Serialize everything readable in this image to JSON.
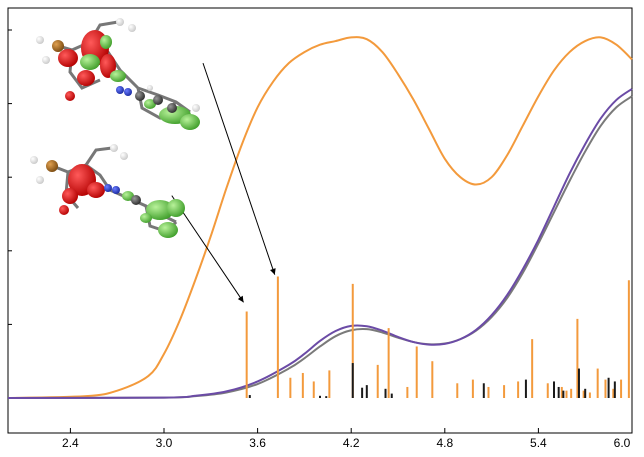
{
  "chart_data": {
    "type": "line",
    "title": "",
    "xlabel": "",
    "ylabel": "",
    "xlim": [
      2.0,
      6.0
    ],
    "ylim": [
      0,
      1
    ],
    "x_ticks": [
      {
        "value": 2.4,
        "label": "2.4"
      },
      {
        "value": 3.0,
        "label": "3.0"
      },
      {
        "value": 3.6,
        "label": "3.6"
      },
      {
        "value": 4.2,
        "label": "4.2"
      },
      {
        "value": 4.8,
        "label": "4.8"
      },
      {
        "value": 5.4,
        "label": "5.4"
      },
      {
        "value": 6.0,
        "label": "6.0"
      }
    ],
    "y_ticks": [
      0.0,
      0.2,
      0.4,
      0.6,
      0.8,
      1.0
    ],
    "grid": false,
    "legend": "none",
    "series": [
      {
        "color": "#f39a3c",
        "x": [
          2.0,
          2.5,
          2.7,
          2.9,
          3.0,
          3.1,
          3.2,
          3.3,
          3.4,
          3.5,
          3.6,
          3.7,
          3.8,
          3.9,
          4.0,
          4.1,
          4.2,
          4.3,
          4.4,
          4.5,
          4.6,
          4.7,
          4.8,
          4.9,
          5.0,
          5.1,
          5.2,
          5.3,
          5.4,
          5.5,
          5.6,
          5.7,
          5.8,
          5.9,
          6.0
        ],
        "values": [
          0.0,
          0.005,
          0.02,
          0.06,
          0.12,
          0.21,
          0.32,
          0.44,
          0.57,
          0.69,
          0.79,
          0.86,
          0.91,
          0.94,
          0.96,
          0.97,
          0.98,
          0.975,
          0.94,
          0.88,
          0.81,
          0.73,
          0.65,
          0.6,
          0.58,
          0.6,
          0.66,
          0.74,
          0.82,
          0.89,
          0.94,
          0.97,
          0.98,
          0.96,
          0.92
        ]
      },
      {
        "color": "#6b4ba6",
        "x": [
          2.0,
          3.0,
          3.2,
          3.4,
          3.6,
          3.8,
          3.9,
          4.0,
          4.1,
          4.2,
          4.3,
          4.4,
          4.5,
          4.6,
          4.7,
          4.8,
          4.9,
          5.0,
          5.1,
          5.2,
          5.3,
          5.4,
          5.5,
          5.6,
          5.7,
          5.8,
          5.9,
          6.0
        ],
        "values": [
          0.0,
          0.001,
          0.006,
          0.018,
          0.045,
          0.09,
          0.12,
          0.155,
          0.182,
          0.196,
          0.195,
          0.183,
          0.166,
          0.152,
          0.145,
          0.147,
          0.16,
          0.185,
          0.225,
          0.28,
          0.35,
          0.43,
          0.52,
          0.61,
          0.69,
          0.76,
          0.81,
          0.84
        ]
      },
      {
        "color": "#7a7a7a",
        "x": [
          2.0,
          3.0,
          3.2,
          3.4,
          3.6,
          3.8,
          3.9,
          4.0,
          4.1,
          4.2,
          4.3,
          4.4,
          4.5,
          4.6,
          4.7,
          4.8,
          4.9,
          5.0,
          5.1,
          5.2,
          5.3,
          5.4,
          5.5,
          5.6,
          5.7,
          5.8,
          5.9,
          6.0
        ],
        "values": [
          0.0,
          0.001,
          0.005,
          0.015,
          0.038,
          0.08,
          0.108,
          0.14,
          0.168,
          0.184,
          0.187,
          0.178,
          0.164,
          0.152,
          0.146,
          0.148,
          0.16,
          0.183,
          0.22,
          0.272,
          0.34,
          0.42,
          0.505,
          0.59,
          0.67,
          0.74,
          0.79,
          0.82
        ]
      }
    ],
    "sticks": {
      "baseline": 0.0,
      "orange": {
        "color": "#f39a3c",
        "x": [
          3.53,
          3.73,
          3.81,
          3.89,
          3.96,
          4.06,
          4.21,
          4.37,
          4.44,
          4.56,
          4.62,
          4.72,
          4.88,
          4.98,
          5.08,
          5.18,
          5.27,
          5.36,
          5.46,
          5.55,
          5.58,
          5.61,
          5.65,
          5.69,
          5.73,
          5.78,
          5.83,
          5.88,
          5.93,
          5.98
        ],
        "values": [
          0.235,
          0.33,
          0.055,
          0.068,
          0.045,
          0.075,
          0.31,
          0.09,
          0.19,
          0.03,
          0.14,
          0.1,
          0.04,
          0.05,
          0.03,
          0.035,
          0.045,
          0.16,
          0.04,
          0.03,
          0.02,
          0.025,
          0.215,
          0.02,
          0.015,
          0.08,
          0.05,
          0.025,
          0.05,
          0.32
        ]
      },
      "black": {
        "color": "#1a1a1a",
        "x": [
          3.55,
          4.0,
          4.04,
          4.21,
          4.27,
          4.3,
          4.42,
          4.46,
          5.05,
          5.32,
          5.5,
          5.53,
          5.56,
          5.66,
          5.7,
          5.85,
          5.89
        ],
        "values": [
          0.008,
          0.006,
          0.005,
          0.095,
          0.028,
          0.035,
          0.025,
          0.012,
          0.04,
          0.05,
          0.045,
          0.03,
          0.02,
          0.08,
          0.025,
          0.055,
          0.045
        ]
      }
    },
    "annotations": [
      {
        "from": [
          3.25,
          0.91
        ],
        "to": [
          3.71,
          0.335
        ]
      },
      {
        "from": [
          3.05,
          0.55
        ],
        "to": [
          3.51,
          0.26
        ]
      }
    ],
    "insets": [
      {
        "name": "orbital-structure-top"
      },
      {
        "name": "orbital-structure-bottom"
      }
    ]
  }
}
